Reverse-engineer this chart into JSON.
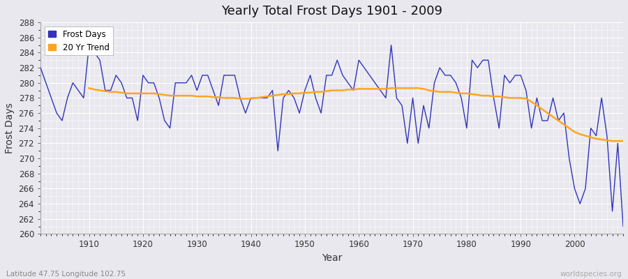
{
  "title": "Yearly Total Frost Days 1901 - 2009",
  "xlabel": "Year",
  "ylabel": "Frost Days",
  "subtitle": "Latitude 47.75 Longitude 102.75",
  "watermark": "worldspecies.org",
  "legend_labels": [
    "Frost Days",
    "20 Yr Trend"
  ],
  "line_color": "#3333bb",
  "trend_color": "#FFA520",
  "background_color": "#e8e8ee",
  "grid_color": "#ffffff",
  "fig_background": "#e8e8ee",
  "ylim": [
    260,
    288
  ],
  "ytick_step": 2,
  "years": [
    1901,
    1902,
    1903,
    1904,
    1905,
    1906,
    1907,
    1908,
    1909,
    1910,
    1911,
    1912,
    1913,
    1914,
    1915,
    1916,
    1917,
    1918,
    1919,
    1920,
    1921,
    1922,
    1923,
    1924,
    1925,
    1926,
    1927,
    1928,
    1929,
    1930,
    1931,
    1932,
    1933,
    1934,
    1935,
    1936,
    1937,
    1938,
    1939,
    1940,
    1941,
    1942,
    1943,
    1944,
    1945,
    1946,
    1947,
    1948,
    1949,
    1950,
    1951,
    1952,
    1953,
    1954,
    1955,
    1956,
    1957,
    1958,
    1959,
    1960,
    1961,
    1962,
    1963,
    1964,
    1965,
    1966,
    1967,
    1968,
    1969,
    1970,
    1971,
    1972,
    1973,
    1974,
    1975,
    1976,
    1977,
    1978,
    1979,
    1980,
    1981,
    1982,
    1983,
    1984,
    1985,
    1986,
    1987,
    1988,
    1989,
    1990,
    1991,
    1992,
    1993,
    1994,
    1995,
    1996,
    1997,
    1998,
    1999,
    2000,
    2001,
    2002,
    2003,
    2004,
    2005,
    2006,
    2007,
    2008,
    2009
  ],
  "frost_days": [
    282,
    280,
    278,
    276,
    275,
    278,
    280,
    279,
    278,
    285,
    284,
    283,
    279,
    279,
    281,
    280,
    278,
    278,
    275,
    281,
    280,
    280,
    278,
    275,
    274,
    280,
    280,
    280,
    281,
    279,
    281,
    281,
    279,
    277,
    281,
    281,
    281,
    278,
    276,
    278,
    278,
    278,
    278,
    279,
    271,
    278,
    279,
    278,
    276,
    279,
    281,
    278,
    276,
    281,
    281,
    283,
    281,
    280,
    279,
    283,
    282,
    281,
    280,
    279,
    278,
    285,
    278,
    277,
    272,
    278,
    272,
    277,
    274,
    280,
    282,
    281,
    281,
    280,
    278,
    274,
    283,
    282,
    283,
    283,
    278,
    274,
    281,
    280,
    281,
    281,
    279,
    274,
    278,
    275,
    275,
    278,
    275,
    276,
    270,
    266,
    264,
    266,
    274,
    273,
    278,
    273,
    263,
    272,
    261
  ],
  "trend_years": [
    1910,
    1911,
    1912,
    1913,
    1914,
    1915,
    1916,
    1917,
    1918,
    1919,
    1920,
    1921,
    1922,
    1923,
    1924,
    1925,
    1926,
    1927,
    1928,
    1929,
    1930,
    1931,
    1932,
    1933,
    1934,
    1935,
    1936,
    1937,
    1938,
    1939,
    1940,
    1941,
    1942,
    1943,
    1944,
    1945,
    1946,
    1947,
    1948,
    1949,
    1950,
    1951,
    1952,
    1953,
    1954,
    1955,
    1956,
    1957,
    1958,
    1959,
    1960,
    1961,
    1962,
    1963,
    1964,
    1965,
    1966,
    1967,
    1968,
    1969,
    1970,
    1971,
    1972,
    1973,
    1974,
    1975,
    1976,
    1977,
    1978,
    1979,
    1980,
    1981,
    1982,
    1983,
    1984,
    1985,
    1986,
    1987,
    1988,
    1989,
    1990,
    1991,
    1992,
    1993,
    1994,
    1995,
    1996,
    1997,
    1998,
    1999,
    2000,
    2001,
    2002,
    2003,
    2004,
    2005,
    2006,
    2007,
    2008,
    2009
  ],
  "trend_values": [
    279.3,
    279.1,
    279.0,
    278.9,
    278.8,
    278.8,
    278.7,
    278.6,
    278.6,
    278.6,
    278.6,
    278.6,
    278.6,
    278.5,
    278.4,
    278.3,
    278.3,
    278.3,
    278.3,
    278.3,
    278.2,
    278.2,
    278.2,
    278.1,
    278.1,
    278.0,
    278.0,
    278.0,
    277.9,
    277.9,
    277.9,
    278.0,
    278.1,
    278.2,
    278.3,
    278.4,
    278.5,
    278.5,
    278.6,
    278.6,
    278.7,
    278.7,
    278.8,
    278.8,
    278.9,
    279.0,
    279.0,
    279.0,
    279.1,
    279.1,
    279.2,
    279.2,
    279.2,
    279.2,
    279.2,
    279.2,
    279.3,
    279.3,
    279.3,
    279.3,
    279.3,
    279.3,
    279.2,
    279.0,
    278.9,
    278.8,
    278.8,
    278.8,
    278.7,
    278.6,
    278.6,
    278.5,
    278.4,
    278.3,
    278.3,
    278.2,
    278.2,
    278.1,
    278.0,
    278.0,
    278.0,
    277.9,
    277.5,
    277.0,
    276.5,
    276.0,
    275.5,
    275.0,
    274.5,
    274.0,
    273.5,
    273.2,
    273.0,
    272.8,
    272.6,
    272.5,
    272.4,
    272.3,
    272.3,
    272.3
  ]
}
